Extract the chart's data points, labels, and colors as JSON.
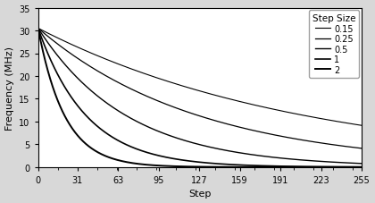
{
  "title": "",
  "xlabel": "Step",
  "ylabel": "Frequency (MHz)",
  "xlim": [
    0,
    255
  ],
  "ylim": [
    0,
    35
  ],
  "xticks": [
    0,
    31,
    63,
    95,
    127,
    159,
    191,
    223,
    255
  ],
  "yticks": [
    0,
    5,
    10,
    15,
    20,
    25,
    30,
    35
  ],
  "legend_title": "Step Size",
  "f0": 30.5,
  "decay_constants": [
    0.00472,
    0.00785,
    0.0143,
    0.0262,
    0.0475
  ],
  "background_color": "#d8d8d8",
  "legend_labels": [
    "0.15",
    "0.25",
    "0.5",
    "1",
    "2"
  ],
  "linewidths": [
    0.8,
    0.9,
    1.0,
    1.2,
    1.4
  ]
}
